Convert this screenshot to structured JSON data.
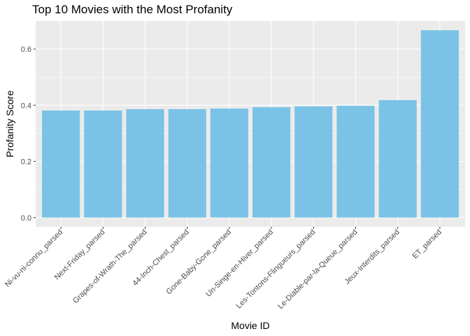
{
  "chart_data": {
    "type": "bar",
    "title": "Top 10 Movies with the Most Profanity",
    "xlabel": "Movie ID",
    "ylabel": "Profanity Score",
    "categories": [
      "Ni-vu-ni-connu_parsed",
      "Next-Friday_parsed",
      "Grapes-of-Wrath-The_parsed",
      "44-Inch-Chest_parsed",
      "Gone-Baby-Gone_parsed",
      "Un-Singe-en-Hiver_parsed",
      "Les-Tontons-Flingueurs_parsed",
      "Le-Diable-par-la-Queue_parsed",
      "Jeux-Interdits_parsed",
      "ET_parsed"
    ],
    "values": [
      0.381,
      0.381,
      0.386,
      0.386,
      0.388,
      0.393,
      0.396,
      0.398,
      0.418,
      0.667
    ],
    "ylim": [
      -0.033,
      0.7
    ],
    "yticks": [
      0.0,
      0.2,
      0.4,
      0.6
    ],
    "ytick_labels": [
      "0.0",
      "0.2",
      "0.4",
      "0.6"
    ],
    "grid": true,
    "colors": {
      "bar": "#7ac3e6",
      "panel": "#ebebeb",
      "grid_major": "#ffffff"
    }
  }
}
